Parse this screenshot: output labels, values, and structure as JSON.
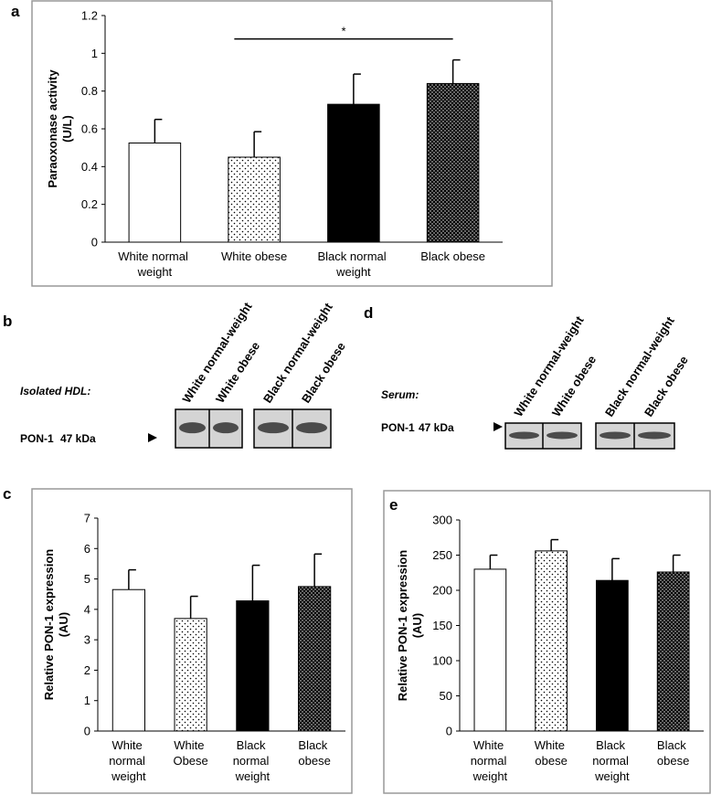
{
  "chart_data": [
    {
      "type": "bar",
      "panel": "a",
      "ylabel": [
        "Paraoxonase activity",
        "(U/L)"
      ],
      "categories": [
        "White normal weight",
        "White obese",
        "Black normal weight",
        "Black obese"
      ],
      "values": [
        0.525,
        0.45,
        0.73,
        0.84
      ],
      "errors": [
        0.125,
        0.135,
        0.16,
        0.125
      ],
      "colors": [
        "#ffffff",
        "#ffffff",
        "#000000",
        "#000000"
      ],
      "hatch": [
        null,
        "dots",
        null,
        "dots"
      ],
      "ylim": [
        0,
        1.2
      ],
      "yticks": [
        0,
        0.2,
        0.4,
        0.6,
        0.8,
        1,
        1.2
      ],
      "significance": {
        "label": "*",
        "between": [
          1,
          3
        ]
      }
    },
    {
      "type": "bar",
      "panel": "c",
      "ylabel": [
        "Relative PON-1 expression",
        "(AU)"
      ],
      "categories": [
        "White normal weight",
        "White Obese",
        "Black normal weight",
        "Black obese"
      ],
      "values": [
        4.65,
        3.7,
        4.28,
        4.75
      ],
      "errors": [
        0.65,
        0.73,
        1.17,
        1.07
      ],
      "colors": [
        "#ffffff",
        "#ffffff",
        "#000000",
        "#000000"
      ],
      "hatch": [
        null,
        "dots",
        null,
        "dots"
      ],
      "ylim": [
        0,
        7
      ],
      "yticks": [
        0,
        1,
        2,
        3,
        4,
        5,
        6,
        7
      ]
    },
    {
      "type": "bar",
      "panel": "e",
      "ylabel": [
        "Relative  PON-1 expression",
        "(AU)"
      ],
      "categories": [
        "White normal weight",
        "White obese",
        "Black normal weight",
        "Black obese"
      ],
      "values": [
        230,
        256,
        214,
        226
      ],
      "errors": [
        20,
        16,
        31,
        24
      ],
      "colors": [
        "#ffffff",
        "#ffffff",
        "#000000",
        "#000000"
      ],
      "hatch": [
        null,
        "dots",
        null,
        "dots"
      ],
      "ylim": [
        0,
        300
      ],
      "yticks": [
        0,
        50,
        100,
        150,
        200,
        250,
        300
      ]
    }
  ],
  "blots": [
    {
      "panel": "b",
      "sample": "Isolated HDL:",
      "protein": "PON-1",
      "size": "47 kDa",
      "lanes": [
        "White normal-weight",
        "White obese",
        "Black normal-weight",
        "Black obese"
      ]
    },
    {
      "panel": "d",
      "sample": "Serum:",
      "protein": "PON-1",
      "size": "47 kDa",
      "lanes": [
        "White normal-weight",
        "White obese",
        "Black normal-weight",
        "Black obese"
      ]
    }
  ]
}
